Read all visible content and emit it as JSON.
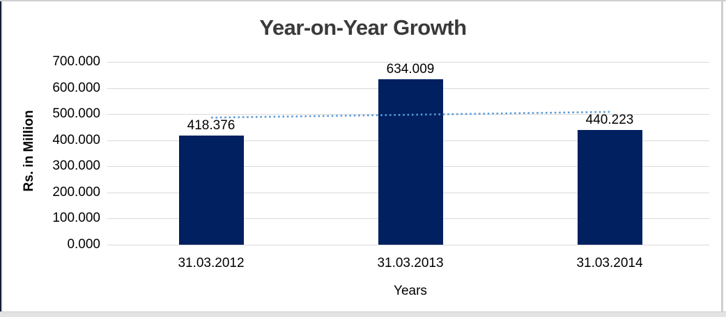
{
  "chart_data": {
    "type": "bar",
    "title": "Year-on-Year Growth",
    "categories": [
      "31.03.2012",
      "31.03.2013",
      "31.03.2014"
    ],
    "values": [
      418.376,
      634.009,
      440.223
    ],
    "data_labels": [
      "418.376",
      "634.009",
      "440.223"
    ],
    "xlabel": "Years",
    "ylabel": "Rs. in Million",
    "ylim": [
      0,
      700
    ],
    "ytick_step": 100,
    "ytick_labels": [
      "700.000",
      "600.000",
      "500.000",
      "400.000",
      "300.000",
      "200.000",
      "100.000",
      "0.000"
    ],
    "grid": true,
    "legend": false,
    "bar_color": "#002060",
    "gridline_color": "#d9d9d9",
    "title_color": "#3a3a3a",
    "axis_text_color": "#000000",
    "trendline": {
      "type": "linear",
      "style": "dotted",
      "color": "#5b9bd5",
      "values": [
        486.6,
        497.5,
        508.5
      ]
    }
  }
}
